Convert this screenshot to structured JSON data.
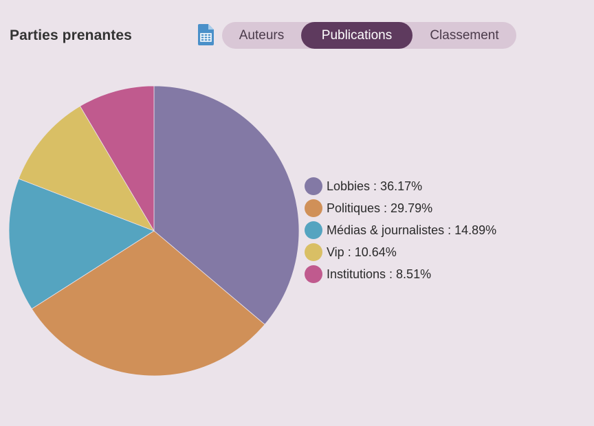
{
  "header": {
    "title": "Parties prenantes"
  },
  "icons": {
    "export": "spreadsheet-icon"
  },
  "tabs": [
    {
      "label": "Auteurs",
      "active": false
    },
    {
      "label": "Publications",
      "active": true
    },
    {
      "label": "Classement",
      "active": false
    }
  ],
  "colors": {
    "background": "#ebe3ea",
    "tab_track": "#d9c7d6",
    "tab_active": "#5e3a5e"
  },
  "chart_data": {
    "type": "pie",
    "categories": [
      "Lobbies",
      "Politiques",
      "Médias & journalistes",
      "Vip",
      "Institutions"
    ],
    "values": [
      36.17,
      29.79,
      14.89,
      10.64,
      8.51
    ],
    "legend_labels": [
      "Lobbies : 36.17%",
      "Politiques : 29.79%",
      "Médias & journalistes : 14.89%",
      "Vip : 10.64%",
      "Institutions : 8.51%"
    ],
    "colors": [
      "#8379a5",
      "#d09058",
      "#55a4c0",
      "#d9bf65",
      "#c05a8e"
    ],
    "legend_position": "right",
    "start": "top",
    "direction": "clockwise"
  }
}
